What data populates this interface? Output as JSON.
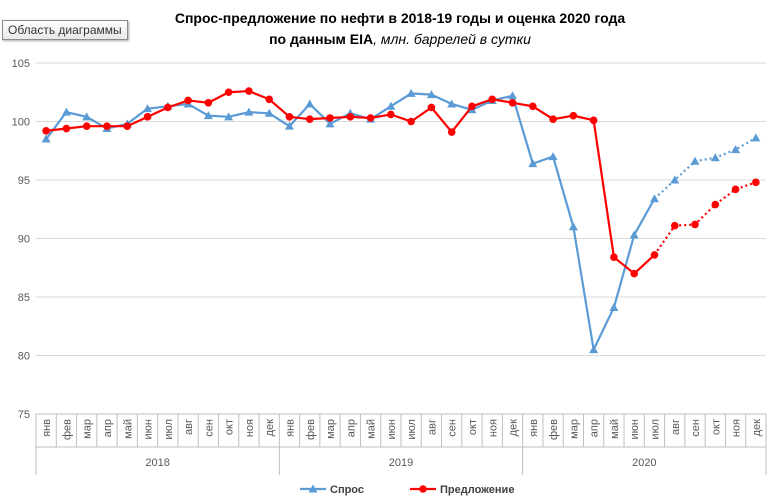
{
  "area_label": "Область диаграммы",
  "chart_data": {
    "type": "line",
    "title_line1": "Спрос-предложение по нефти в 2018-19 годы и оценка 2020 года",
    "title_line2_bold": "по данным  EIA",
    "title_line2_italic": ", млн. баррелей в сутки",
    "ylim": [
      75,
      105
    ],
    "yticks": [
      75,
      80,
      85,
      90,
      95,
      100,
      105
    ],
    "months": [
      "янв",
      "фев",
      "мар",
      "апр",
      "май",
      "июн",
      "июл",
      "авг",
      "сен",
      "окт",
      "ноя",
      "дек"
    ],
    "years": [
      "2018",
      "2019",
      "2020"
    ],
    "forecast_from_index": 30,
    "series": [
      {
        "name": "Спрос",
        "color": "#5b9bd5",
        "marker": "triangle",
        "values": [
          98.5,
          100.8,
          100.4,
          99.4,
          99.8,
          101.1,
          101.3,
          101.5,
          100.5,
          100.4,
          100.8,
          100.7,
          99.6,
          101.5,
          99.8,
          100.7,
          100.2,
          101.3,
          102.4,
          102.3,
          101.5,
          101.0,
          101.8,
          102.2,
          96.4,
          97.0,
          91.0,
          80.5,
          84.1,
          90.3,
          93.4,
          95.0,
          96.6,
          96.9,
          97.6,
          98.6
        ]
      },
      {
        "name": "Предложение",
        "color": "#ff0000",
        "marker": "circle",
        "values": [
          99.2,
          99.4,
          99.6,
          99.6,
          99.6,
          100.4,
          101.2,
          101.8,
          101.6,
          102.5,
          102.6,
          101.9,
          100.4,
          100.2,
          100.3,
          100.4,
          100.3,
          100.6,
          100.0,
          101.2,
          99.1,
          101.3,
          101.9,
          101.6,
          101.3,
          100.2,
          100.5,
          100.1,
          88.4,
          87.0,
          88.6,
          91.1,
          91.2,
          92.9,
          94.2,
          94.8
        ]
      }
    ],
    "legend": "bottom"
  }
}
